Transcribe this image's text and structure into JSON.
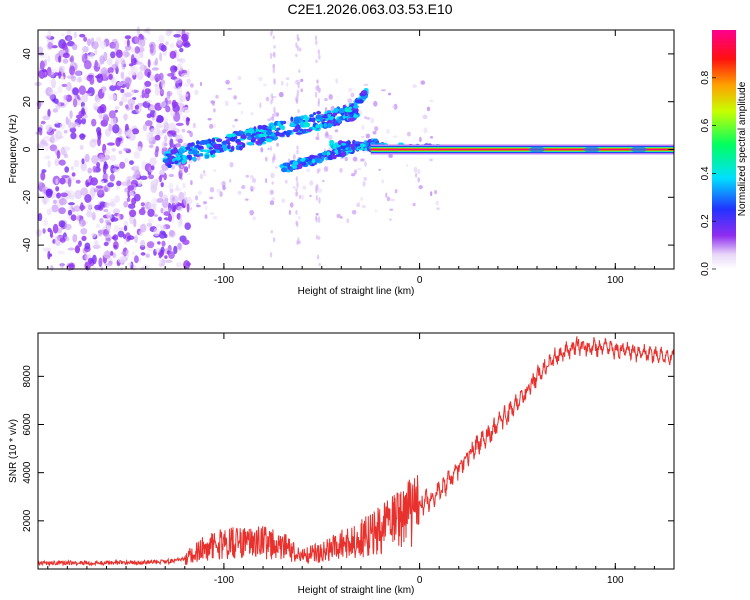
{
  "title": "C2E1.2026.063.03.53.E10",
  "colors": {
    "snr_line": "#e8302c",
    "ridge": "#e3303a",
    "frame": "#000000"
  },
  "chart_data": [
    {
      "type": "heatmap",
      "xlabel": "Height of straight line (km)",
      "ylabel": "Frequency (Hz)",
      "xlim": [
        -195,
        130
      ],
      "ylim": [
        -50,
        50
      ],
      "xticks": [
        -100,
        0,
        100
      ],
      "xtick_labels": [
        "-100",
        "0",
        "100"
      ],
      "yticks": [
        -40,
        -20,
        0,
        20,
        40
      ],
      "ytick_labels": [
        "-40",
        "-20",
        "0",
        "20",
        "40"
      ],
      "colorbar": {
        "label": "Normalized spectral amplitude",
        "range": [
          0,
          1
        ],
        "ticks": [
          0,
          0.2,
          0.4,
          0.6,
          0.8
        ],
        "tick_labels": [
          "0.0",
          "0.2",
          "0.4",
          "0.6",
          "0.8"
        ]
      },
      "features": {
        "noise_region_km": [
          -195,
          -118
        ],
        "transition_region_km": [
          -135,
          10
        ],
        "upper_branch": {
          "km": [
            -130,
            -32
          ],
          "hz": [
            -4,
            16
          ]
        },
        "upper_hook": {
          "km": [
            -36,
            -27
          ],
          "hz": [
            16,
            24
          ]
        },
        "lower_branch": {
          "km": [
            -70,
            -22
          ],
          "hz": [
            -8,
            3
          ]
        },
        "steady_line": {
          "km": [
            -25,
            130
          ],
          "hz": 0,
          "normalized_amplitude": 0.98
        }
      }
    },
    {
      "type": "line",
      "xlabel": "Height of straight line (km)",
      "ylabel": "SNR (10 * v/v)",
      "xlim": [
        -195,
        130
      ],
      "ylim": [
        0,
        9800
      ],
      "xticks": [
        -100,
        0,
        100
      ],
      "xtick_labels": [
        "-100",
        "0",
        "100"
      ],
      "yticks": [
        2000,
        4000,
        6000,
        8000
      ],
      "ytick_labels": [
        "2000",
        "4000",
        "6000",
        "8000"
      ],
      "series": [
        {
          "name": "SNR",
          "x": [
            -195,
            -170,
            -150,
            -130,
            -120,
            -110,
            -100,
            -90,
            -80,
            -70,
            -60,
            -50,
            -40,
            -30,
            -20,
            -10,
            0,
            10,
            20,
            30,
            40,
            50,
            60,
            70,
            80,
            90,
            100,
            110,
            120,
            130
          ],
          "y": [
            250,
            250,
            260,
            300,
            420,
            900,
            1050,
            1100,
            1100,
            950,
            520,
            700,
            1000,
            1250,
            1650,
            2050,
            2600,
            3200,
            4200,
            5200,
            6000,
            6900,
            8000,
            8850,
            9250,
            9200,
            9100,
            9000,
            8900,
            8850
          ]
        }
      ]
    }
  ]
}
